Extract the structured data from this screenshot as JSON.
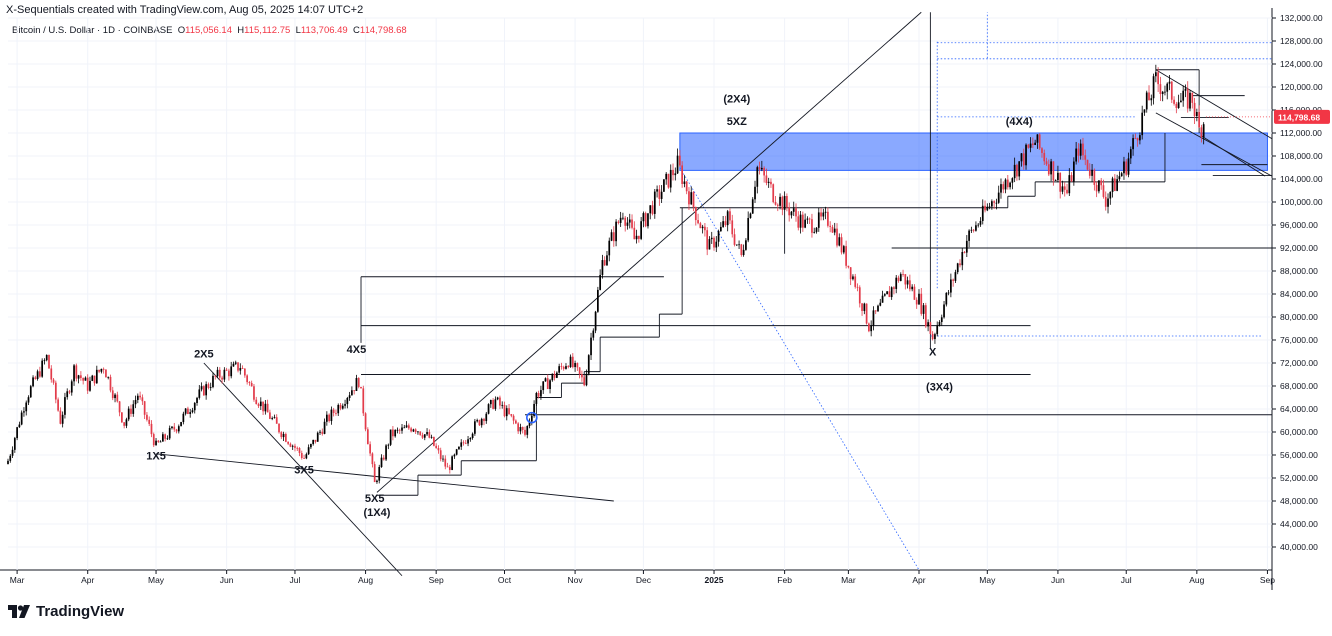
{
  "header": {
    "title": "X-Sequentials created with TradingView.com, Aug 05, 2025 14:07 UTC+2"
  },
  "symbol": {
    "name": "Bitcoin / U.S. Dollar · 1D · COINBASE",
    "o_label": "O",
    "o_value": "115,056.14",
    "h_label": "H",
    "h_value": "115,112.75",
    "l_label": "L",
    "l_value": "113,706.49",
    "c_label": "C",
    "c_value": "114,798.68"
  },
  "footer": {
    "brand": "TradingView"
  },
  "colors": {
    "up": "#000000",
    "down": "#e23b4a",
    "zone": "#2962ff",
    "price_tag": "#f23645",
    "dotted": "#2962ff"
  },
  "chart_data": {
    "type": "candlestick",
    "y_axis": {
      "min": 36000,
      "max": 132000,
      "ticks": [
        "132,000.00",
        "128,000.00",
        "124,000.00",
        "120,000.00",
        "116,000.00",
        "112,000.00",
        "108,000.00",
        "104,000.00",
        "100,000.00",
        "96,000.00",
        "92,000.00",
        "88,000.00",
        "84,000.00",
        "80,000.00",
        "76,000.00",
        "72,000.00",
        "68,000.00",
        "64,000.00",
        "60,000.00",
        "56,000.00",
        "52,000.00",
        "48,000.00",
        "44,000.00",
        "40,000.00"
      ],
      "tick_values": [
        132000,
        128000,
        124000,
        120000,
        116000,
        112000,
        108000,
        104000,
        100000,
        96000,
        92000,
        88000,
        84000,
        80000,
        76000,
        72000,
        68000,
        64000,
        60000,
        56000,
        52000,
        48000,
        44000,
        40000
      ]
    },
    "x_axis": {
      "labels": [
        "Mar",
        "Apr",
        "May",
        "Jun",
        "Jul",
        "Aug",
        "Sep",
        "Oct",
        "Nov",
        "Dec",
        "2025",
        "Feb",
        "Mar",
        "Apr",
        "May",
        "Jun",
        "Jul",
        "Aug",
        "Sep"
      ],
      "label_dates": [
        "2024-03-01",
        "2024-04-01",
        "2024-05-01",
        "2024-06-01",
        "2024-07-01",
        "2024-08-01",
        "2024-09-01",
        "2024-10-01",
        "2024-11-01",
        "2024-12-01",
        "2025-01-01",
        "2025-02-01",
        "2025-03-01",
        "2025-04-01",
        "2025-05-01",
        "2025-06-01",
        "2025-07-01",
        "2025-08-01",
        "2025-09-01"
      ],
      "start": "2024-02-26",
      "end": "2025-09-03"
    },
    "last_price": {
      "value": 114798.68,
      "label": "114,798.68"
    },
    "path": [
      [
        "2024-02-26",
        55000
      ],
      [
        "2024-03-05",
        66000
      ],
      [
        "2024-03-14",
        73000
      ],
      [
        "2024-03-20",
        62000
      ],
      [
        "2024-03-26",
        71000
      ],
      [
        "2024-04-01",
        68000
      ],
      [
        "2024-04-08",
        71500
      ],
      [
        "2024-04-17",
        61500
      ],
      [
        "2024-04-23",
        66500
      ],
      [
        "2024-05-01",
        57500
      ],
      [
        "2024-05-10",
        61000
      ],
      [
        "2024-05-20",
        66500
      ],
      [
        "2024-05-27",
        69500
      ],
      [
        "2024-06-07",
        71500
      ],
      [
        "2024-06-14",
        66000
      ],
      [
        "2024-06-24",
        60500
      ],
      [
        "2024-07-05",
        55500
      ],
      [
        "2024-07-15",
        62000
      ],
      [
        "2024-07-29",
        69000
      ],
      [
        "2024-08-05",
        51000
      ],
      [
        "2024-08-12",
        59500
      ],
      [
        "2024-08-22",
        61000
      ],
      [
        "2024-08-29",
        59000
      ],
      [
        "2024-09-06",
        53500
      ],
      [
        "2024-09-15",
        59500
      ],
      [
        "2024-09-27",
        65500
      ],
      [
        "2024-10-10",
        59500
      ],
      [
        "2024-10-15",
        66500
      ],
      [
        "2024-10-29",
        72500
      ],
      [
        "2024-11-05",
        68500
      ],
      [
        "2024-11-13",
        89500
      ],
      [
        "2024-11-22",
        98500
      ],
      [
        "2024-11-27",
        93500
      ],
      [
        "2024-12-05",
        99500
      ],
      [
        "2024-12-16",
        106500
      ],
      [
        "2024-12-30",
        92000
      ],
      [
        "2025-01-07",
        97000
      ],
      [
        "2025-01-13",
        90500
      ],
      [
        "2025-01-20",
        106000
      ],
      [
        "2025-01-27",
        101500
      ],
      [
        "2025-02-10",
        96000
      ],
      [
        "2025-02-21",
        97000
      ],
      [
        "2025-03-04",
        86000
      ],
      [
        "2025-03-10",
        78500
      ],
      [
        "2025-03-24",
        87500
      ],
      [
        "2025-04-01",
        83000
      ],
      [
        "2025-04-07",
        76500
      ],
      [
        "2025-04-22",
        93500
      ],
      [
        "2025-05-08",
        103000
      ],
      [
        "2025-05-22",
        110500
      ],
      [
        "2025-06-05",
        101500
      ],
      [
        "2025-06-10",
        109500
      ],
      [
        "2025-06-22",
        100500
      ],
      [
        "2025-07-01",
        106500
      ],
      [
        "2025-07-10",
        117000
      ],
      [
        "2025-07-14",
        121000
      ],
      [
        "2025-07-25",
        117500
      ],
      [
        "2025-07-30",
        118000
      ],
      [
        "2025-08-02",
        112500
      ],
      [
        "2025-08-05",
        114800
      ]
    ],
    "zone": {
      "start": "2024-12-17",
      "end": "2025-09-01",
      "top": 112000,
      "bottom": 105500
    },
    "annotations": [
      {
        "text": "1X5",
        "date": "2024-05-01",
        "price": 55200
      },
      {
        "text": "2X5",
        "date": "2024-05-22",
        "price": 73000
      },
      {
        "text": "3X5",
        "date": "2024-07-05",
        "price": 52800
      },
      {
        "text": "4X5",
        "date": "2024-07-28",
        "price": 73700
      },
      {
        "text": "5X5",
        "date": "2024-08-05",
        "price": 47800
      },
      {
        "text": "(1X4)",
        "date": "2024-08-06",
        "price": 45400
      },
      {
        "text": "(2X4)",
        "date": "2025-01-11",
        "price": 117300
      },
      {
        "text": "5XZ",
        "date": "2025-01-11",
        "price": 113400
      },
      {
        "text": "(3X4)",
        "date": "2025-04-10",
        "price": 67200
      },
      {
        "text": "X",
        "date": "2025-04-07",
        "price": 73300
      },
      {
        "text": "(4X4)",
        "date": "2025-05-15",
        "price": 113400
      }
    ]
  }
}
